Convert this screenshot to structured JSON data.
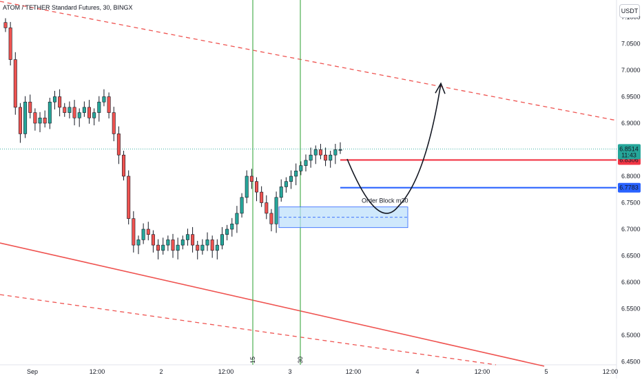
{
  "header": {
    "symbol_title": "ATOM / TETHER Standard Futures, 30, BINGX",
    "currency": "USDT"
  },
  "colors": {
    "bull": "#26a69a",
    "bear": "#ef5350",
    "candle_body": "#131722",
    "resistance_line": "#f23645",
    "support_line": "#2962ff",
    "time_marker": "#4caf50",
    "order_block_fill": "#bbdefb",
    "order_block_border": "#2962ff"
  },
  "chart_data": {
    "type": "candlestick",
    "title": "ATOM / TETHER Standard Futures, 30, BINGX",
    "ylim": [
      6.45,
      7.1
    ],
    "y_ticks": [
      "7.1000",
      "7.0500",
      "7.0000",
      "6.9500",
      "6.9000",
      "6.8500",
      "6.8000",
      "6.7500",
      "6.7000",
      "6.6500",
      "6.6000",
      "6.5500",
      "6.5000",
      "6.4500"
    ],
    "x_ticks": [
      "Sep",
      "12:00",
      "2",
      "12:00",
      "3",
      "12:00",
      "4",
      "12:00",
      "5",
      "12:00"
    ],
    "price_close_path": [
      7.08,
      7.02,
      6.93,
      6.88,
      6.94,
      6.92,
      6.9,
      6.91,
      6.9,
      6.94,
      6.95,
      6.93,
      6.92,
      6.93,
      6.91,
      6.92,
      6.93,
      6.91,
      6.92,
      6.94,
      6.95,
      6.92,
      6.88,
      6.84,
      6.8,
      6.72,
      6.67,
      6.68,
      6.7,
      6.69,
      6.67,
      6.66,
      6.67,
      6.68,
      6.66,
      6.67,
      6.68,
      6.69,
      6.67,
      6.66,
      6.67,
      6.68,
      6.66,
      6.67,
      6.69,
      6.7,
      6.71,
      6.73,
      6.76,
      6.8,
      6.79,
      6.77,
      6.75,
      6.73,
      6.71,
      6.76,
      6.78,
      6.79,
      6.8,
      6.81,
      6.82,
      6.83,
      6.84,
      6.85,
      6.84,
      6.83,
      6.84,
      6.85,
      6.85
    ],
    "last_price": "6.8514",
    "countdown": "11:43",
    "levels": [
      {
        "label": "6.8306",
        "price": 6.8306,
        "color": "#f23645"
      },
      {
        "label": "6.7783",
        "price": 6.7783,
        "color": "#2962ff"
      }
    ],
    "order_block": {
      "label": "Order Block m30",
      "top": 6.742,
      "bottom": 6.703
    },
    "time_markers": [
      "15",
      "30"
    ],
    "projection_peak": 6.975
  }
}
